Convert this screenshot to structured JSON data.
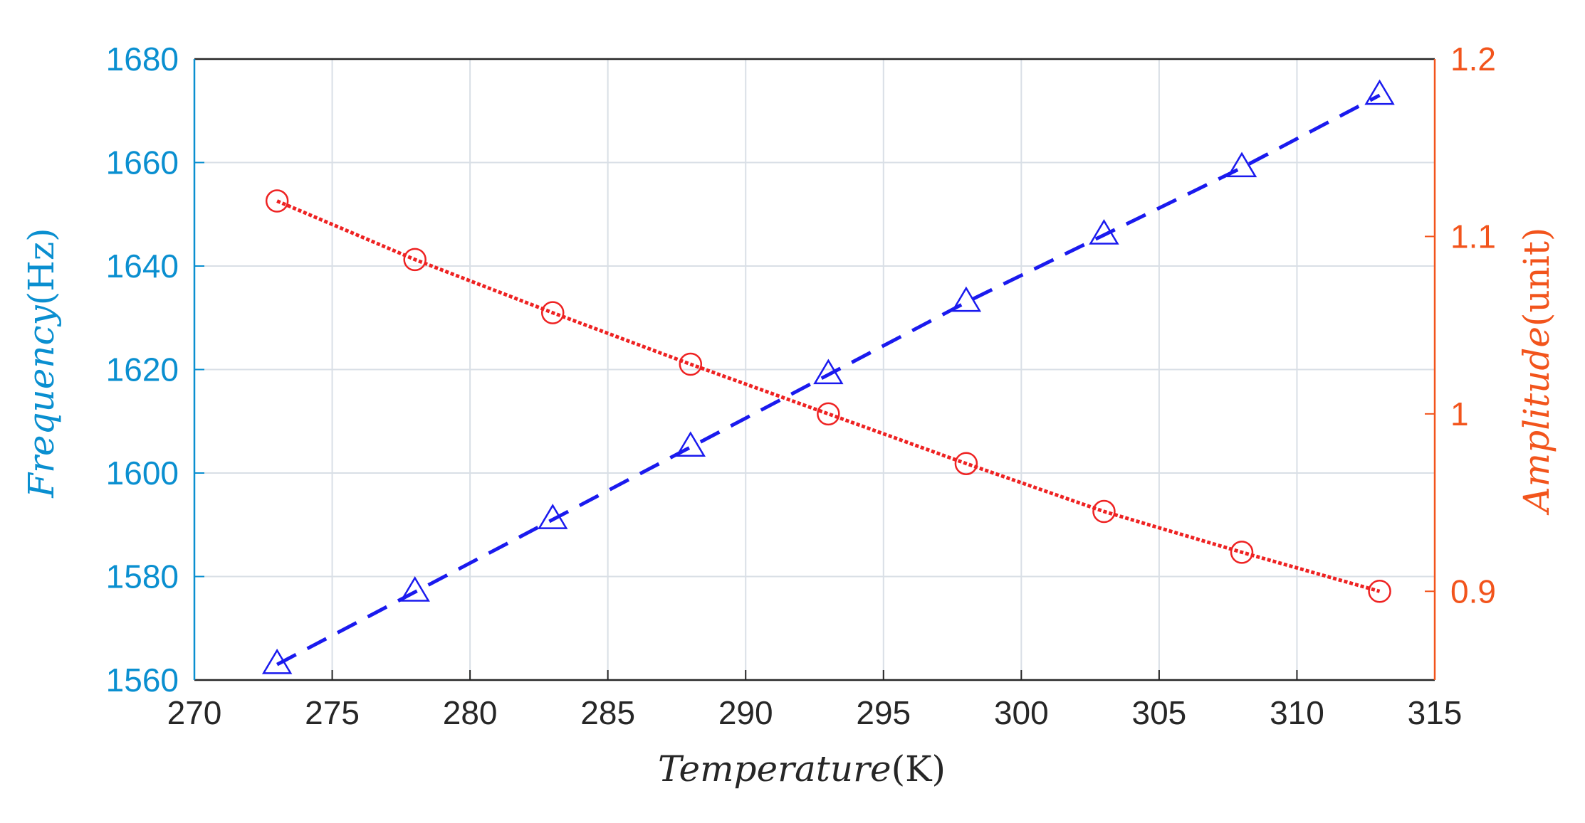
{
  "colors": {
    "left_axis": "#0a8fd0",
    "right_axis": "#f2541c",
    "frequency_series": "#1a1aee",
    "amplitude_series": "#ee2222",
    "grid": "#d9dfe6"
  },
  "chart_data": {
    "type": "line",
    "xlabel": {
      "italic": "Temperature",
      "unit": "(K)"
    },
    "ylabel_left": {
      "italic": "Frequency",
      "unit": "(Hz)"
    },
    "ylabel_right": {
      "italic": "Amplitude",
      "unit": "(unit)"
    },
    "xlim": [
      270,
      315
    ],
    "ylim_left": [
      1560,
      1680
    ],
    "ylim_right": [
      0.85,
      1.2
    ],
    "x_ticks": [
      "270",
      "275",
      "280",
      "285",
      "290",
      "295",
      "300",
      "305",
      "310",
      "315"
    ],
    "y_ticks_left": [
      "1560",
      "1580",
      "1600",
      "1620",
      "1640",
      "1660",
      "1680"
    ],
    "y_ticks_right": [
      "0.9",
      "1",
      "1.1",
      "1.2"
    ],
    "grid": true,
    "x": [
      273,
      278,
      283,
      288,
      293,
      298,
      303,
      308,
      313
    ],
    "series": [
      {
        "axis": "left",
        "marker": "triangle",
        "line_style": "dashed",
        "values": [
          1563,
          1577,
          1591,
          1605,
          1619,
          1633,
          1646,
          1659,
          1673
        ]
      },
      {
        "axis": "right",
        "marker": "circle",
        "line_style": "dotted",
        "values": [
          1.12,
          1.087,
          1.057,
          1.028,
          1.0,
          0.972,
          0.945,
          0.922,
          0.9
        ]
      }
    ]
  }
}
